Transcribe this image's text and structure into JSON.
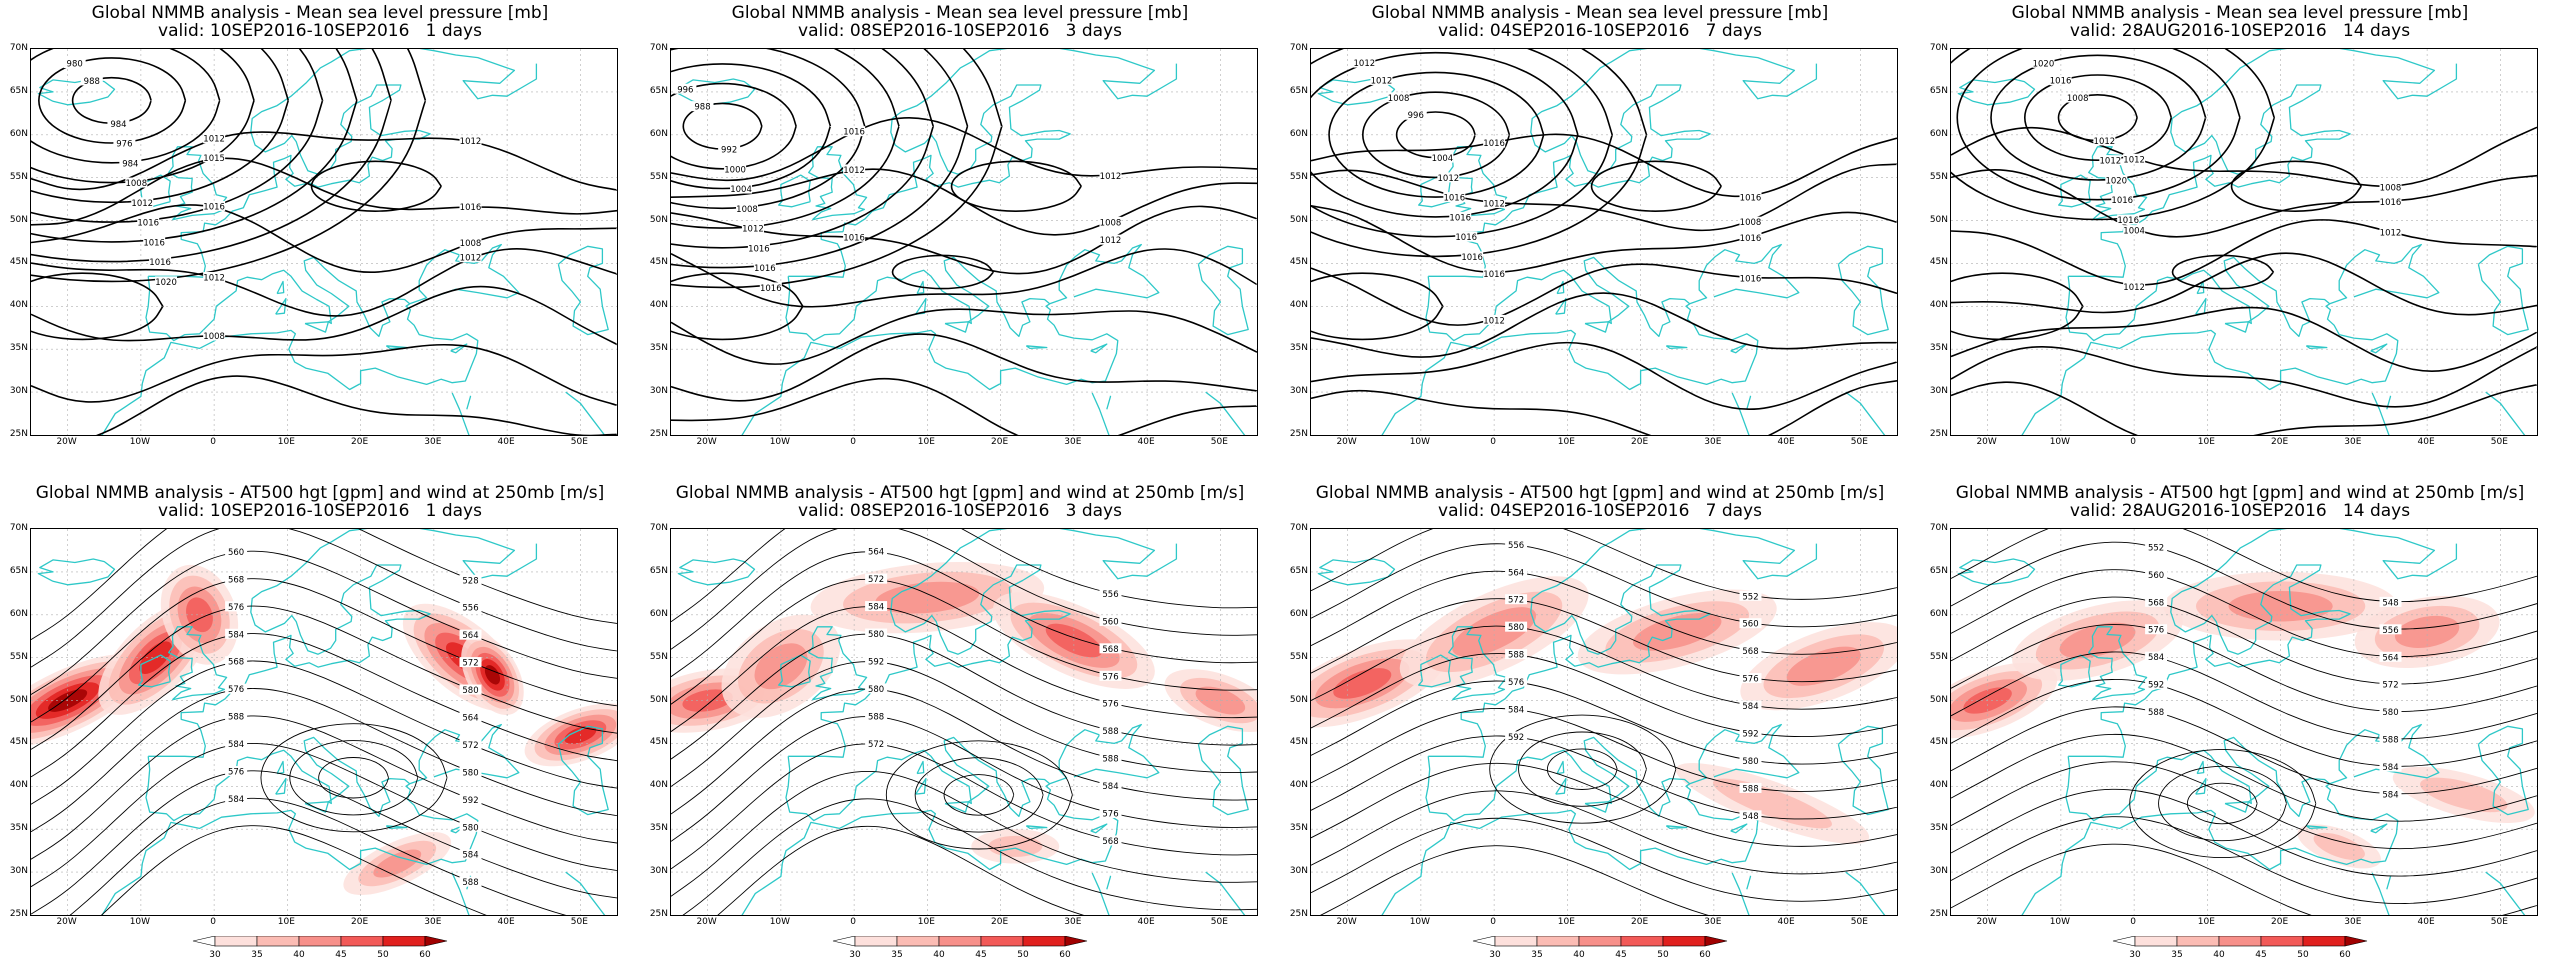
{
  "mslp_title": "Global NMMB analysis - Mean sea level pressure [mb]",
  "h500_title": "Global NMMB analysis - AT500 hgt [gpm] and wind at 250mb [m/s]",
  "periods": [
    {
      "valid": "valid: 10SEP2016-10SEP2016   1 days"
    },
    {
      "valid": "valid: 08SEP2016-10SEP2016   3 days"
    },
    {
      "valid": "valid: 04SEP2016-10SEP2016   7 days"
    },
    {
      "valid": "valid: 28AUG2016-10SEP2016   14 days"
    }
  ],
  "lat_labels": [
    "70N",
    "65N",
    "60N",
    "55N",
    "50N",
    "45N",
    "40N",
    "35N",
    "30N",
    "25N"
  ],
  "lon_labels": [
    "20W",
    "10W",
    "0",
    "10E",
    "20E",
    "30E",
    "40E",
    "50E"
  ],
  "colorbar": {
    "labels": [
      "30",
      "35",
      "40",
      "45",
      "50",
      "60"
    ],
    "colors": [
      "#ffffff",
      "#fde0dc",
      "#fbbcb4",
      "#f7908a",
      "#f25a58",
      "#e0201e",
      "#a00000"
    ]
  },
  "colors": {
    "coast": "#2ec8c8",
    "contour": "#000000",
    "grid": "#b0b0b0"
  },
  "mslp_contour_labels": [
    [
      "988",
      "984",
      "980",
      "976",
      "984",
      "1008",
      "1012",
      "1016",
      "1016",
      "1016",
      "1020",
      "1012",
      "1012",
      "1015",
      "1016",
      "1016",
      "1008",
      "1012",
      "1012",
      "1008"
    ],
    [
      "988",
      "992",
      "996",
      "1000",
      "1004",
      "1008",
      "1012",
      "1016",
      "1016",
      "1016",
      "1016",
      "1012",
      "1012",
      "1008",
      "1016",
      "1012"
    ],
    [
      "996",
      "1004",
      "1008",
      "1012",
      "1012",
      "1016",
      "1012",
      "1016",
      "1016",
      "1016",
      "1016",
      "1016",
      "1012",
      "1008",
      "1016",
      "1016",
      "1012",
      "1016"
    ],
    [
      "1008",
      "1012",
      "1016",
      "1012",
      "1020",
      "1020",
      "1016",
      "1016",
      "1012",
      "1008",
      "1004",
      "1016",
      "1012",
      "1012"
    ]
  ],
  "h500_contour_labels": [
    [
      "528",
      "556",
      "560",
      "564",
      "568",
      "572",
      "576",
      "580",
      "584",
      "564",
      "568",
      "572",
      "576",
      "580",
      "588",
      "592",
      "584",
      "580",
      "576",
      "584",
      "584",
      "588"
    ],
    [
      "556",
      "560",
      "564",
      "568",
      "572",
      "576",
      "584",
      "576",
      "580",
      "588",
      "592",
      "588",
      "580",
      "584",
      "588",
      "576",
      "572",
      "568"
    ],
    [
      "552",
      "556",
      "560",
      "564",
      "568",
      "572",
      "576",
      "580",
      "584",
      "588",
      "592",
      "576",
      "580",
      "584",
      "588",
      "592",
      "548"
    ],
    [
      "548",
      "552",
      "556",
      "560",
      "564",
      "568",
      "572",
      "576",
      "580",
      "584",
      "588",
      "592",
      "584",
      "588",
      "584"
    ]
  ]
}
